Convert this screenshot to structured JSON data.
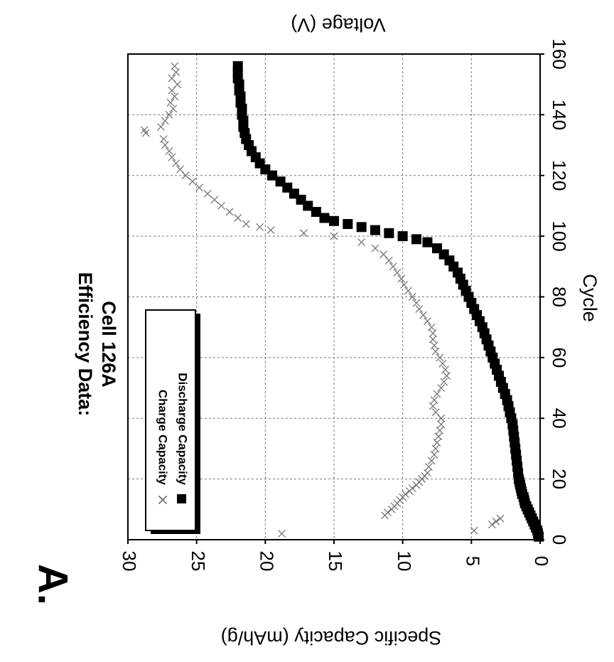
{
  "panel_label": "A.",
  "chart_data": {
    "type": "scatter",
    "title": "Efficiency Data:",
    "subtitle": "Cell 126A",
    "xlabel": "Cycle",
    "ylabel": "Specific Capacity (mAh/g)",
    "y2label": "Voltage (V)",
    "xlim": [
      0,
      160
    ],
    "ylim": [
      0,
      30
    ],
    "x_ticks": [
      "0",
      "20",
      "40",
      "60",
      "80",
      "100",
      "120",
      "140",
      "160"
    ],
    "y_ticks": [
      "0",
      "5",
      "10",
      "15",
      "20",
      "25",
      "30"
    ],
    "grid": true,
    "orientation": "rotated 90° clockwise",
    "legend_position": "upper-left",
    "series": [
      {
        "name": "Charge Capacity",
        "marker": "x",
        "color": "#777777",
        "points": [
          [
            2,
            18.8
          ],
          [
            3,
            4.8
          ],
          [
            5,
            3.5
          ],
          [
            6,
            3.2
          ],
          [
            7,
            2.9
          ],
          [
            8,
            11.3
          ],
          [
            9,
            11.1
          ],
          [
            10,
            10.8
          ],
          [
            11,
            10.6
          ],
          [
            12,
            10.4
          ],
          [
            13,
            10.2
          ],
          [
            14,
            10.0
          ],
          [
            15,
            9.8
          ],
          [
            16,
            9.5
          ],
          [
            17,
            9.3
          ],
          [
            18,
            9.0
          ],
          [
            19,
            8.8
          ],
          [
            20,
            8.6
          ],
          [
            21,
            8.4
          ],
          [
            22,
            8.2
          ],
          [
            24,
            8.1
          ],
          [
            26,
            7.9
          ],
          [
            28,
            7.7
          ],
          [
            30,
            7.6
          ],
          [
            32,
            7.5
          ],
          [
            34,
            7.4
          ],
          [
            36,
            7.3
          ],
          [
            38,
            7.2
          ],
          [
            40,
            7.2
          ],
          [
            42,
            7.6
          ],
          [
            44,
            7.8
          ],
          [
            46,
            7.7
          ],
          [
            48,
            7.5
          ],
          [
            50,
            7.2
          ],
          [
            52,
            7.0
          ],
          [
            54,
            6.8
          ],
          [
            56,
            6.9
          ],
          [
            58,
            7.1
          ],
          [
            60,
            7.3
          ],
          [
            62,
            7.6
          ],
          [
            64,
            7.7
          ],
          [
            66,
            7.8
          ],
          [
            68,
            7.8
          ],
          [
            70,
            7.9
          ],
          [
            72,
            8.2
          ],
          [
            74,
            8.5
          ],
          [
            76,
            8.8
          ],
          [
            78,
            9.0
          ],
          [
            80,
            9.3
          ],
          [
            82,
            9.6
          ],
          [
            84,
            9.9
          ],
          [
            86,
            10.1
          ],
          [
            88,
            10.4
          ],
          [
            90,
            10.7
          ],
          [
            92,
            11.0
          ],
          [
            94,
            11.4
          ],
          [
            96,
            12.0
          ],
          [
            98,
            13.0
          ],
          [
            100,
            15.0
          ],
          [
            101,
            17.2
          ],
          [
            102,
            19.6
          ],
          [
            103,
            20.4
          ],
          [
            104,
            21.4
          ],
          [
            106,
            22.0
          ],
          [
            108,
            22.6
          ],
          [
            110,
            23.2
          ],
          [
            112,
            23.7
          ],
          [
            114,
            24.2
          ],
          [
            116,
            24.8
          ],
          [
            118,
            25.3
          ],
          [
            120,
            25.8
          ],
          [
            122,
            26.2
          ],
          [
            124,
            26.5
          ],
          [
            126,
            26.8
          ],
          [
            128,
            27.0
          ],
          [
            130,
            27.3
          ],
          [
            132,
            27.4
          ],
          [
            134,
            28.7
          ],
          [
            135,
            28.8
          ],
          [
            136,
            27.6
          ],
          [
            138,
            27.3
          ],
          [
            140,
            27.0
          ],
          [
            142,
            26.7
          ],
          [
            144,
            26.9
          ],
          [
            146,
            26.6
          ],
          [
            148,
            26.8
          ],
          [
            150,
            26.4
          ],
          [
            152,
            26.8
          ],
          [
            154,
            26.5
          ],
          [
            156,
            26.6
          ]
        ]
      },
      {
        "name": "Discharge Capacity",
        "marker": "square",
        "color": "#000000",
        "points": [
          [
            1,
            0.1
          ],
          [
            2,
            0.15
          ],
          [
            3,
            0.2
          ],
          [
            4,
            0.3
          ],
          [
            5,
            0.4
          ],
          [
            6,
            0.5
          ],
          [
            7,
            0.6
          ],
          [
            8,
            0.7
          ],
          [
            9,
            0.8
          ],
          [
            10,
            0.9
          ],
          [
            11,
            1.0
          ],
          [
            12,
            1.1
          ],
          [
            13,
            1.15
          ],
          [
            14,
            1.2
          ],
          [
            15,
            1.3
          ],
          [
            16,
            1.35
          ],
          [
            17,
            1.4
          ],
          [
            18,
            1.45
          ],
          [
            19,
            1.5
          ],
          [
            20,
            1.55
          ],
          [
            22,
            1.6
          ],
          [
            24,
            1.65
          ],
          [
            26,
            1.7
          ],
          [
            28,
            1.75
          ],
          [
            30,
            1.8
          ],
          [
            32,
            1.85
          ],
          [
            34,
            1.9
          ],
          [
            36,
            1.95
          ],
          [
            38,
            2.0
          ],
          [
            40,
            2.1
          ],
          [
            42,
            2.2
          ],
          [
            44,
            2.3
          ],
          [
            46,
            2.4
          ],
          [
            48,
            2.55
          ],
          [
            50,
            2.7
          ],
          [
            52,
            2.85
          ],
          [
            54,
            3.0
          ],
          [
            56,
            3.15
          ],
          [
            58,
            3.3
          ],
          [
            60,
            3.45
          ],
          [
            62,
            3.6
          ],
          [
            64,
            3.75
          ],
          [
            66,
            3.9
          ],
          [
            68,
            4.05
          ],
          [
            70,
            4.2
          ],
          [
            72,
            4.4
          ],
          [
            74,
            4.6
          ],
          [
            76,
            4.8
          ],
          [
            78,
            5.0
          ],
          [
            80,
            5.2
          ],
          [
            82,
            5.4
          ],
          [
            84,
            5.6
          ],
          [
            86,
            5.8
          ],
          [
            88,
            6.0
          ],
          [
            90,
            6.3
          ],
          [
            92,
            6.6
          ],
          [
            94,
            7.0
          ],
          [
            96,
            7.5
          ],
          [
            98,
            8.2
          ],
          [
            99,
            9.0
          ],
          [
            100,
            10.0
          ],
          [
            101,
            11.0
          ],
          [
            102,
            12.0
          ],
          [
            103,
            13.0
          ],
          [
            104,
            14.0
          ],
          [
            105,
            15.0
          ],
          [
            106,
            15.7
          ],
          [
            108,
            16.3
          ],
          [
            110,
            16.9
          ],
          [
            112,
            17.4
          ],
          [
            114,
            17.9
          ],
          [
            116,
            18.4
          ],
          [
            118,
            18.9
          ],
          [
            120,
            19.5
          ],
          [
            122,
            20.0
          ],
          [
            124,
            20.4
          ],
          [
            126,
            20.7
          ],
          [
            128,
            21.0
          ],
          [
            130,
            21.2
          ],
          [
            132,
            21.4
          ],
          [
            134,
            21.5
          ],
          [
            136,
            21.6
          ],
          [
            138,
            21.6
          ],
          [
            140,
            21.7
          ],
          [
            142,
            21.7
          ],
          [
            144,
            21.8
          ],
          [
            146,
            21.8
          ],
          [
            148,
            21.9
          ],
          [
            150,
            21.9
          ],
          [
            152,
            22.0
          ],
          [
            154,
            22.0
          ],
          [
            156,
            22.0
          ]
        ]
      }
    ]
  }
}
